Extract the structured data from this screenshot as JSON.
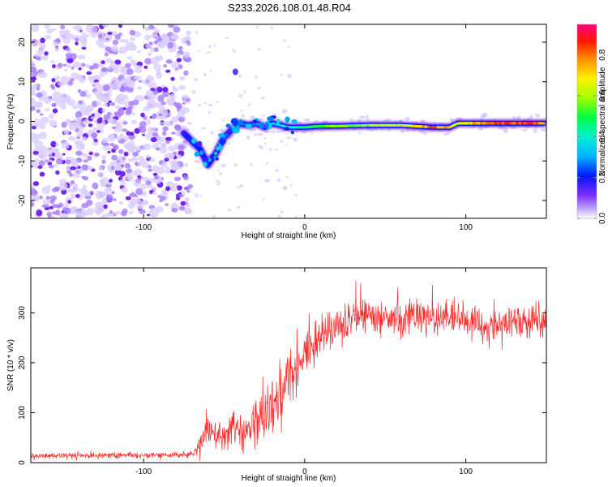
{
  "title": "S233.2026.108.01.48.R04",
  "chart_data": [
    {
      "type": "heatmap",
      "name": "spectrogram",
      "xlabel": "Height of straight line (km)",
      "ylabel": "Frequency (Hz)",
      "xlim": [
        -170,
        150
      ],
      "ylim": [
        -24.5,
        24.5
      ],
      "xticks": [
        -100,
        0,
        100
      ],
      "yticks": [
        -20,
        -10,
        0,
        10,
        20
      ],
      "ridge": {
        "description": "strong carrier line near 0 Hz",
        "x": [
          -75,
          -70,
          -65,
          -60,
          -55,
          -50,
          -45,
          -40,
          -35,
          -30,
          -25,
          -20,
          -15,
          -10,
          -5,
          0,
          10,
          20,
          40,
          60,
          80,
          90,
          95,
          100,
          120,
          140,
          148
        ],
        "frequency": [
          -3,
          -5,
          -7,
          -11,
          -8,
          -4,
          -2,
          -0.5,
          -1,
          -0.5,
          -1.5,
          -0.5,
          -1,
          -1.5,
          -1.5,
          -1.5,
          -1.2,
          -1.2,
          -1.0,
          -1.0,
          -1.5,
          -1.5,
          -0.5,
          -0.5,
          -0.5,
          -0.5,
          -0.5
        ],
        "normalized_amplitude": [
          0.2,
          0.25,
          0.2,
          0.25,
          0.2,
          0.3,
          0.3,
          0.3,
          0.3,
          0.3,
          0.35,
          0.35,
          0.4,
          0.45,
          0.5,
          0.5,
          0.55,
          0.6,
          0.65,
          0.7,
          0.9,
          0.8,
          0.7,
          0.75,
          0.95,
          0.95,
          0.8
        ]
      },
      "noise_region_x": [
        -170,
        -75
      ],
      "colorbar": {
        "label": "Normalized spectral amplitude",
        "range": [
          0.0,
          0.95
        ],
        "ticks": [
          "0.0",
          "0.2",
          "0.4",
          "0.6",
          "0.8"
        ],
        "tick_values": [
          0.0,
          0.2,
          0.4,
          0.6,
          0.8
        ]
      }
    },
    {
      "type": "line",
      "name": "snr",
      "xlabel": "Height of straight line (km)",
      "ylabel": "SNR (10 * v/v)",
      "xlim": [
        -170,
        150
      ],
      "ylim": [
        0,
        390
      ],
      "xticks": [
        -100,
        0,
        100
      ],
      "yticks": [
        0,
        100,
        200,
        300
      ],
      "color": "#ff2a2a",
      "envelope": {
        "x": [
          -170,
          -80,
          -68,
          -65,
          -60,
          -55,
          -50,
          -45,
          -40,
          -35,
          -30,
          -25,
          -20,
          -15,
          -10,
          -5,
          0,
          5,
          10,
          15,
          20,
          30,
          40,
          50,
          60,
          70,
          80,
          90,
          100,
          110,
          120,
          130,
          140,
          150
        ],
        "mean": [
          14,
          15,
          18,
          40,
          70,
          55,
          45,
          65,
          60,
          75,
          80,
          95,
          120,
          140,
          170,
          190,
          215,
          230,
          250,
          262,
          275,
          285,
          292,
          295,
          290,
          293,
          290,
          285,
          285,
          283,
          280,
          280,
          280,
          280
        ],
        "noise": [
          7,
          8,
          10,
          35,
          45,
          35,
          35,
          50,
          45,
          55,
          60,
          65,
          75,
          75,
          70,
          65,
          60,
          55,
          50,
          48,
          45,
          45,
          45,
          45,
          45,
          45,
          45,
          45,
          45,
          45,
          45,
          45,
          45,
          45
        ]
      }
    }
  ]
}
